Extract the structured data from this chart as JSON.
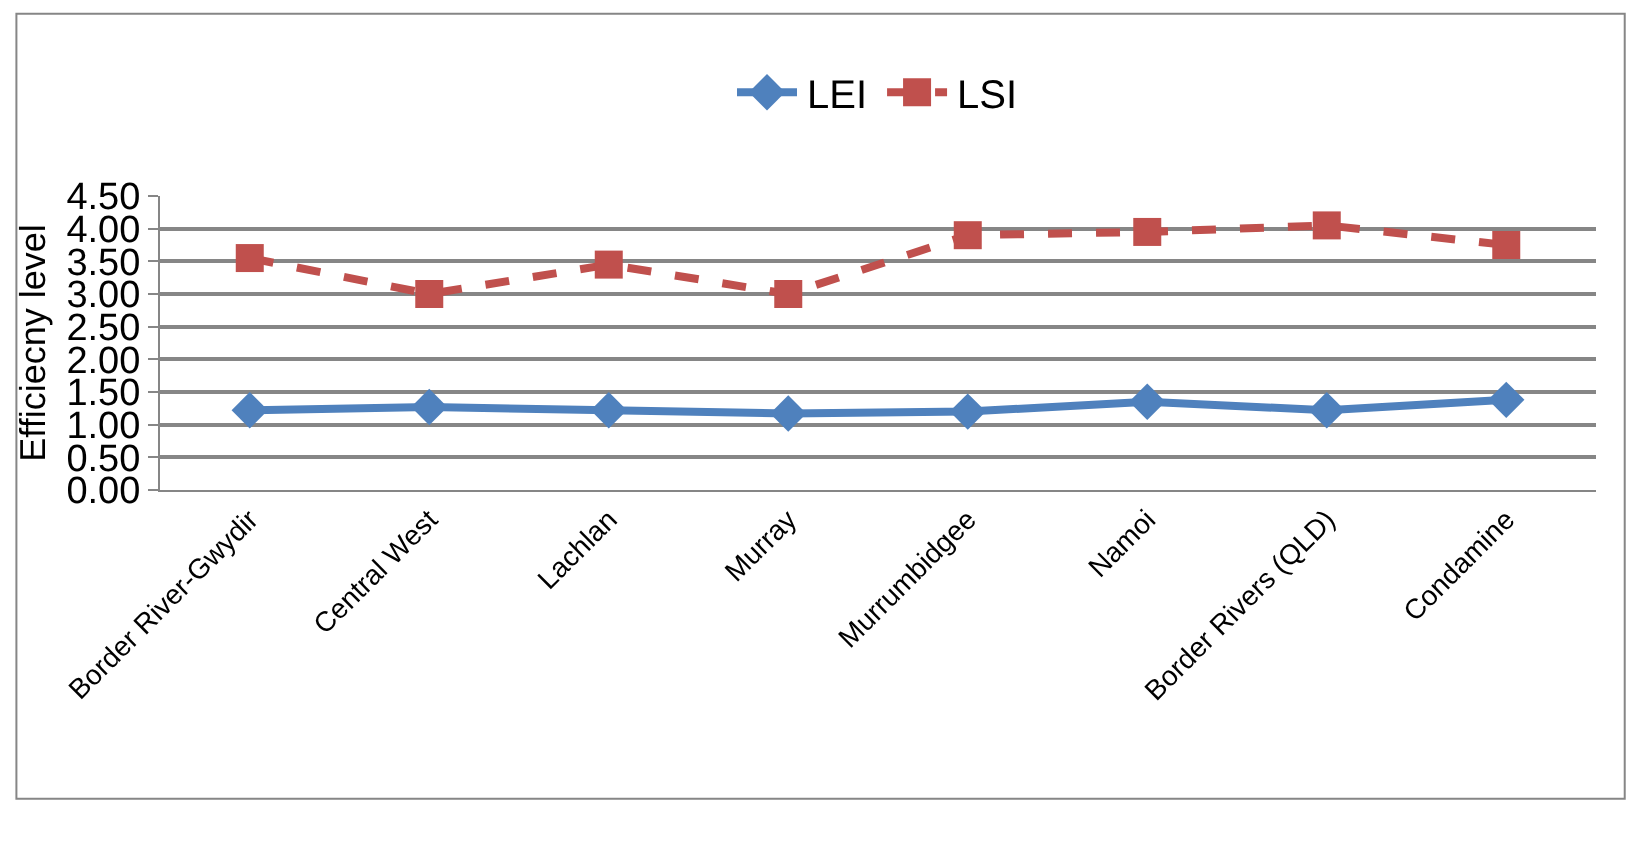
{
  "chart_data": {
    "type": "line",
    "ylabel": "Efficiecny level",
    "categories": [
      "Border River-Gwydir",
      "Central West",
      "Lachlan",
      "Murray",
      "Murrumbidgee",
      "Namoi",
      "Border Rivers (QLD)",
      "Condamine"
    ],
    "series": [
      {
        "name": "LEI",
        "color": "#4f81bd",
        "marker": "diamond",
        "line_style": "solid",
        "values": [
          1.22,
          1.27,
          1.22,
          1.17,
          1.2,
          1.35,
          1.22,
          1.38
        ]
      },
      {
        "name": "LSI",
        "color": "#c0504d",
        "marker": "square",
        "line_style": "dashed",
        "values": [
          3.55,
          3.0,
          3.45,
          3.0,
          3.9,
          3.95,
          4.05,
          3.75
        ]
      }
    ],
    "ylim": [
      0,
      4.5
    ],
    "yticks": [
      {
        "value": 0,
        "label": "0.00"
      },
      {
        "value": 0.5,
        "label": "0.50"
      },
      {
        "value": 1,
        "label": "1.00"
      },
      {
        "value": 1.5,
        "label": "1.50"
      },
      {
        "value": 2,
        "label": "2.00"
      },
      {
        "value": 2.5,
        "label": "2.50"
      },
      {
        "value": 3,
        "label": "3.00"
      },
      {
        "value": 3.5,
        "label": "3.50"
      },
      {
        "value": 4,
        "label": "4.00"
      },
      {
        "value": 4.5,
        "label": "4.50"
      }
    ],
    "grid": "y",
    "legend": "top"
  }
}
